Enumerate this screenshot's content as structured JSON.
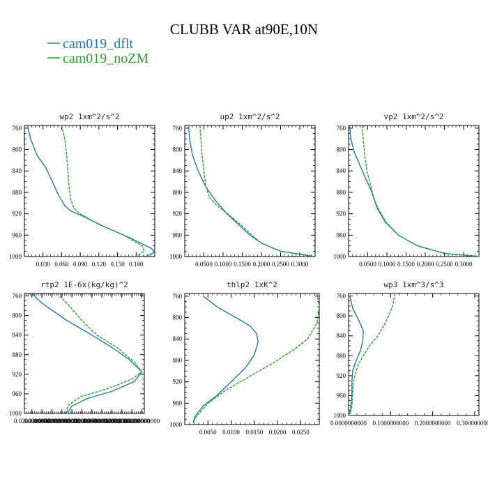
{
  "figure": {
    "title": "CLUBB VAR at90E,10N",
    "legend": [
      {
        "label": "cam019_dflt",
        "color": "#1f77b4",
        "dash": "solid"
      },
      {
        "label": "cam019_noZM",
        "color": "#2ca02c",
        "dash": "dashed"
      }
    ]
  },
  "chart_data": [
    {
      "type": "line",
      "title": "wp2   1xm^2/s^2",
      "ylim": [
        1000,
        755
      ],
      "yticks": [
        760,
        800,
        840,
        880,
        920,
        960,
        1000
      ],
      "xlim": [
        0.0,
        0.21
      ],
      "xticks": [
        0.03,
        0.06,
        0.09,
        0.12,
        0.15,
        0.18
      ],
      "xtick_labels": [
        "0.030",
        "0.060",
        "0.090",
        "0.120",
        "0.150",
        "0.180"
      ],
      "series": [
        {
          "name": "cam019_dflt",
          "color": "#1f77b4",
          "x": [
            0.005,
            0.01,
            0.02,
            0.035,
            0.045,
            0.055,
            0.065,
            0.075,
            0.095,
            0.13,
            0.17,
            0.205,
            0.21,
            0.195
          ],
          "y": [
            755,
            780,
            810,
            835,
            860,
            885,
            905,
            915,
            925,
            945,
            965,
            985,
            992,
            1000
          ]
        },
        {
          "name": "cam019_noZM",
          "color": "#2ca02c",
          "x": [
            0.06,
            0.065,
            0.068,
            0.07,
            0.072,
            0.075,
            0.08,
            0.09,
            0.12,
            0.16,
            0.19,
            0.193,
            0.18
          ],
          "y": [
            755,
            780,
            810,
            840,
            870,
            895,
            910,
            920,
            940,
            960,
            980,
            990,
            1000
          ]
        }
      ]
    },
    {
      "type": "line",
      "title": "up2   1xm^2/s^2",
      "ylim": [
        1000,
        755
      ],
      "yticks": [
        760,
        800,
        840,
        880,
        920,
        960,
        1000
      ],
      "xlim": [
        0.0,
        0.34
      ],
      "xticks": [
        0.05,
        0.1,
        0.15,
        0.2,
        0.25,
        0.3
      ],
      "xtick_labels": [
        "0.0500",
        "0.1000",
        "0.1500",
        "0.2000",
        "0.2500",
        "0.3000"
      ],
      "series": [
        {
          "name": "cam019_dflt",
          "color": "#1f77b4",
          "x": [
            0.01,
            0.013,
            0.02,
            0.035,
            0.055,
            0.08,
            0.11,
            0.14,
            0.17,
            0.2,
            0.25,
            0.32,
            0.34
          ],
          "y": [
            755,
            780,
            810,
            840,
            870,
            895,
            920,
            940,
            960,
            975,
            990,
            998,
            1000
          ]
        },
        {
          "name": "cam019_noZM",
          "color": "#2ca02c",
          "x": [
            0.04,
            0.042,
            0.045,
            0.05,
            0.055,
            0.065,
            0.085,
            0.115,
            0.145,
            0.175,
            0.2,
            0.25,
            0.32,
            0.34
          ],
          "y": [
            755,
            780,
            810,
            840,
            870,
            890,
            905,
            922,
            940,
            960,
            975,
            990,
            998,
            1000
          ]
        }
      ]
    },
    {
      "type": "line",
      "title": "vp2   1xm^2/s^2",
      "ylim": [
        1000,
        755
      ],
      "yticks": [
        760,
        800,
        840,
        880,
        920,
        960,
        1000
      ],
      "xlim": [
        0.0,
        0.34
      ],
      "xticks": [
        0.05,
        0.1,
        0.15,
        0.2,
        0.25,
        0.3
      ],
      "xtick_labels": [
        "0.0500",
        "0.1000",
        "0.1500",
        "0.2000",
        "0.2500",
        "0.3000"
      ],
      "series": [
        {
          "name": "cam019_dflt",
          "color": "#1f77b4",
          "x": [
            0.003,
            0.006,
            0.015,
            0.03,
            0.045,
            0.058,
            0.065,
            0.075,
            0.095,
            0.13,
            0.18,
            0.25,
            0.34
          ],
          "y": [
            755,
            780,
            805,
            830,
            855,
            875,
            890,
            910,
            935,
            960,
            980,
            994,
            1000
          ]
        },
        {
          "name": "cam019_noZM",
          "color": "#2ca02c",
          "x": [
            0.035,
            0.038,
            0.042,
            0.048,
            0.055,
            0.062,
            0.068,
            0.077,
            0.097,
            0.13,
            0.18,
            0.25,
            0.34
          ],
          "y": [
            755,
            780,
            810,
            840,
            860,
            880,
            895,
            910,
            935,
            960,
            980,
            994,
            1000
          ]
        }
      ]
    },
    {
      "type": "line",
      "title": "rtp2   1E-6x(kg/kg)^2",
      "ylim": [
        1000,
        755
      ],
      "yticks": [
        760,
        800,
        840,
        880,
        920,
        960,
        1000
      ],
      "xlim": [
        0.005,
        0.245
      ],
      "xticks": [
        0.02,
        0.04,
        0.06,
        0.08,
        0.1,
        0.12,
        0.14,
        0.16,
        0.18,
        0.2,
        0.22,
        0.24
      ],
      "xtick_labels": [
        "0.0200000000",
        "0.0400000000",
        "0.0600000000",
        "0.0800000000",
        "0.1000000000",
        "0.1200000000",
        "0.1400000000",
        "0.1600000000",
        "0.1800000000",
        "0.2000000000",
        "0.2200000000",
        "0.2400000000"
      ],
      "series": [
        {
          "name": "cam019_dflt",
          "color": "#1f77b4",
          "x": [
            0.02,
            0.04,
            0.09,
            0.14,
            0.18,
            0.215,
            0.24,
            0.225,
            0.18,
            0.13,
            0.1,
            0.095,
            0.085
          ],
          "y": [
            755,
            775,
            810,
            840,
            865,
            890,
            915,
            935,
            955,
            970,
            985,
            993,
            1000
          ]
        },
        {
          "name": "cam019_noZM",
          "color": "#2ca02c",
          "x": [
            0.07,
            0.09,
            0.12,
            0.15,
            0.19,
            0.225,
            0.24,
            0.22,
            0.17,
            0.12,
            0.1,
            0.092,
            0.09
          ],
          "y": [
            755,
            775,
            810,
            840,
            865,
            895,
            915,
            930,
            950,
            965,
            978,
            985,
            993
          ]
        }
      ]
    },
    {
      "type": "line",
      "title": "thlp2   1xK^2",
      "ylim": [
        1000,
        755
      ],
      "yticks": [
        760,
        800,
        840,
        880,
        920,
        960,
        1000
      ],
      "xlim": [
        0.0,
        0.029
      ],
      "xticks": [
        0.005,
        0.01,
        0.015,
        0.02,
        0.025
      ],
      "xtick_labels": [
        "0.0050",
        "0.0100",
        "0.0150",
        "0.0200",
        "0.0250"
      ],
      "series": [
        {
          "name": "cam019_dflt",
          "color": "#1f77b4",
          "x": [
            0.004,
            0.007,
            0.011,
            0.014,
            0.0155,
            0.0158,
            0.015,
            0.013,
            0.01,
            0.007,
            0.004,
            0.0022,
            0.0018
          ],
          "y": [
            760,
            780,
            800,
            815,
            830,
            845,
            870,
            895,
            920,
            945,
            965,
            985,
            997
          ]
        },
        {
          "name": "cam019_noZM",
          "color": "#2ca02c",
          "x": [
            0.0285,
            0.029,
            0.0285,
            0.0265,
            0.0235,
            0.019,
            0.014,
            0.009,
            0.005,
            0.0025,
            0.0018
          ],
          "y": [
            755,
            780,
            810,
            840,
            860,
            885,
            910,
            935,
            960,
            985,
            997
          ]
        }
      ]
    },
    {
      "type": "line",
      "title": "wp3   1xm^3/s^3",
      "ylim": [
        1000,
        755
      ],
      "yticks": [
        760,
        800,
        840,
        880,
        920,
        960,
        1000
      ],
      "xlim": [
        0.0,
        0.31
      ],
      "xticks": [
        0.0,
        0.1,
        0.2,
        0.3
      ],
      "xtick_labels": [
        "0.0000000000",
        "0.1000000000",
        "0.2000000000",
        "0.3000000000"
      ],
      "series": [
        {
          "name": "cam019_dflt",
          "color": "#1f77b4",
          "x": [
            0.003,
            0.01,
            0.025,
            0.035,
            0.034,
            0.028,
            0.018,
            0.01,
            0.008,
            0.008,
            0.006,
            0.002
          ],
          "y": [
            760,
            785,
            810,
            830,
            850,
            870,
            890,
            910,
            930,
            955,
            980,
            997
          ]
        },
        {
          "name": "cam019_noZM",
          "color": "#2ca02c",
          "x": [
            0.11,
            0.105,
            0.09,
            0.07,
            0.05,
            0.035,
            0.022,
            0.015,
            0.011,
            0.01,
            0.008,
            0.004
          ],
          "y": [
            755,
            780,
            810,
            840,
            860,
            880,
            900,
            920,
            935,
            955,
            980,
            997
          ]
        }
      ]
    }
  ]
}
